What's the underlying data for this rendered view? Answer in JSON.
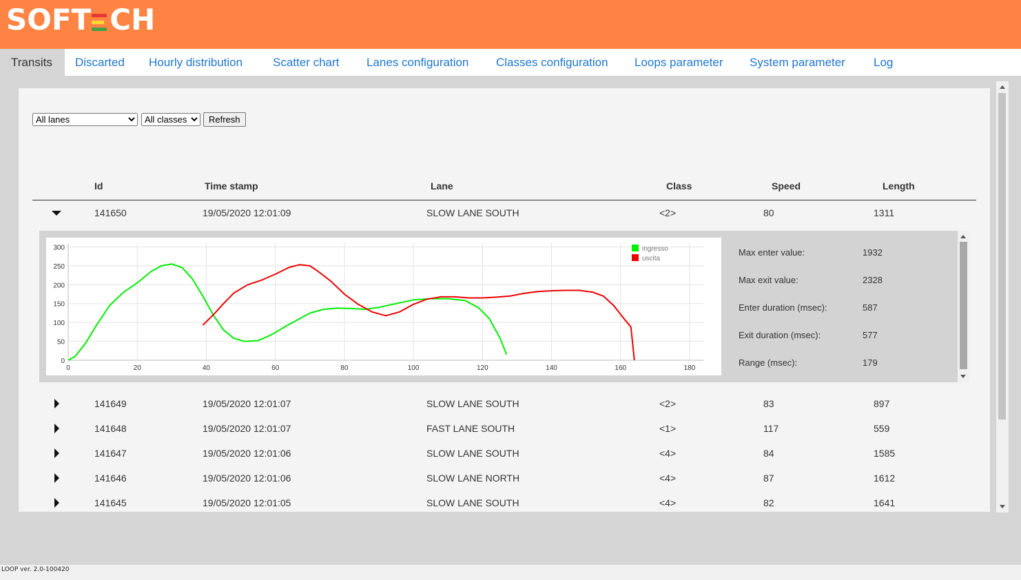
{
  "app": {
    "logo": "SOFTECH",
    "logo_prefix": "SOFT",
    "logo_suffix": "CH",
    "logo_e_colors": [
      "#e53935",
      "#fdd835",
      "#43a047"
    ],
    "version": "LOOP ver. 2.0-100420"
  },
  "nav": {
    "tabs": [
      {
        "label": "Transits",
        "active": true
      },
      {
        "label": "Discarted",
        "active": false
      },
      {
        "label": "Hourly distribution",
        "active": false
      },
      {
        "label": "Scatter chart",
        "active": false
      },
      {
        "label": "Lanes configuration",
        "active": false
      },
      {
        "label": "Classes configuration",
        "active": false
      },
      {
        "label": "Loops parameter",
        "active": false
      },
      {
        "label": "System parameter",
        "active": false
      },
      {
        "label": "Log",
        "active": false
      }
    ]
  },
  "filters": {
    "lanes_selected": "All lanes",
    "classes_selected": "All classes",
    "refresh_label": "Refresh"
  },
  "table": {
    "headers": [
      "Id",
      "Time stamp",
      "Lane",
      "Class",
      "Speed",
      "Length"
    ],
    "rows": [
      {
        "id": "141650",
        "time": "19/05/2020 12:01:09",
        "lane": "SLOW LANE SOUTH",
        "class": "<2>",
        "speed": "80",
        "length": "1311",
        "expanded": true
      },
      {
        "id": "141649",
        "time": "19/05/2020 12:01:07",
        "lane": "SLOW LANE SOUTH",
        "class": "<2>",
        "speed": "83",
        "length": "897",
        "expanded": false
      },
      {
        "id": "141648",
        "time": "19/05/2020 12:01:07",
        "lane": "FAST LANE SOUTH",
        "class": "<1>",
        "speed": "117",
        "length": "559",
        "expanded": false
      },
      {
        "id": "141647",
        "time": "19/05/2020 12:01:06",
        "lane": "SLOW LANE SOUTH",
        "class": "<4>",
        "speed": "84",
        "length": "1585",
        "expanded": false
      },
      {
        "id": "141646",
        "time": "19/05/2020 12:01:06",
        "lane": "SLOW LANE NORTH",
        "class": "<4>",
        "speed": "87",
        "length": "1612",
        "expanded": false
      },
      {
        "id": "141645",
        "time": "19/05/2020 12:01:05",
        "lane": "SLOW LANE SOUTH",
        "class": "<4>",
        "speed": "82",
        "length": "1641",
        "expanded": false
      }
    ]
  },
  "detail": {
    "stats": [
      {
        "label": "Max enter value:",
        "value": "1932"
      },
      {
        "label": "Max exit value:",
        "value": "2328"
      },
      {
        "label": "Enter duration (msec):",
        "value": "587"
      },
      {
        "label": "Exit duration (msec):",
        "value": "577"
      },
      {
        "label": "Range (msec):",
        "value": "179"
      }
    ]
  },
  "chart_data": {
    "type": "line",
    "title": "",
    "xlabel": "",
    "ylabel": "",
    "xlim": [
      0,
      184
    ],
    "ylim": [
      0,
      310
    ],
    "xticks": [
      0,
      20,
      40,
      60,
      80,
      100,
      120,
      140,
      160,
      180
    ],
    "yticks": [
      0,
      50,
      100,
      150,
      200,
      250,
      300
    ],
    "grid": true,
    "legend_position": "top-right",
    "series": [
      {
        "name": "ingresso",
        "color": "#00ee00",
        "points": [
          [
            0,
            0
          ],
          [
            2,
            10
          ],
          [
            5,
            45
          ],
          [
            8,
            90
          ],
          [
            12,
            145
          ],
          [
            16,
            180
          ],
          [
            20,
            205
          ],
          [
            24,
            235
          ],
          [
            27,
            250
          ],
          [
            30,
            255
          ],
          [
            33,
            245
          ],
          [
            36,
            215
          ],
          [
            39,
            170
          ],
          [
            42,
            120
          ],
          [
            45,
            80
          ],
          [
            48,
            58
          ],
          [
            51,
            50
          ],
          [
            55,
            52
          ],
          [
            59,
            68
          ],
          [
            63,
            90
          ],
          [
            67,
            110
          ],
          [
            70,
            125
          ],
          [
            74,
            135
          ],
          [
            78,
            138
          ],
          [
            82,
            137
          ],
          [
            86,
            135
          ],
          [
            90,
            140
          ],
          [
            95,
            150
          ],
          [
            100,
            160
          ],
          [
            105,
            163
          ],
          [
            110,
            163
          ],
          [
            115,
            158
          ],
          [
            119,
            138
          ],
          [
            122,
            110
          ],
          [
            125,
            60
          ],
          [
            127,
            15
          ]
        ]
      },
      {
        "name": "uscita",
        "color": "#ee0000",
        "points": [
          [
            39,
            93
          ],
          [
            42,
            120
          ],
          [
            45,
            150
          ],
          [
            48,
            178
          ],
          [
            52,
            200
          ],
          [
            56,
            212
          ],
          [
            60,
            228
          ],
          [
            64,
            246
          ],
          [
            67,
            253
          ],
          [
            70,
            250
          ],
          [
            72,
            238
          ],
          [
            76,
            210
          ],
          [
            80,
            175
          ],
          [
            84,
            148
          ],
          [
            88,
            128
          ],
          [
            92,
            118
          ],
          [
            96,
            128
          ],
          [
            100,
            148
          ],
          [
            104,
            162
          ],
          [
            108,
            168
          ],
          [
            112,
            168
          ],
          [
            116,
            165
          ],
          [
            120,
            165
          ],
          [
            124,
            167
          ],
          [
            128,
            170
          ],
          [
            132,
            177
          ],
          [
            136,
            182
          ],
          [
            140,
            184
          ],
          [
            144,
            185
          ],
          [
            148,
            185
          ],
          [
            152,
            180
          ],
          [
            155,
            170
          ],
          [
            158,
            145
          ],
          [
            161,
            110
          ],
          [
            163,
            88
          ],
          [
            164,
            0
          ]
        ]
      }
    ]
  }
}
